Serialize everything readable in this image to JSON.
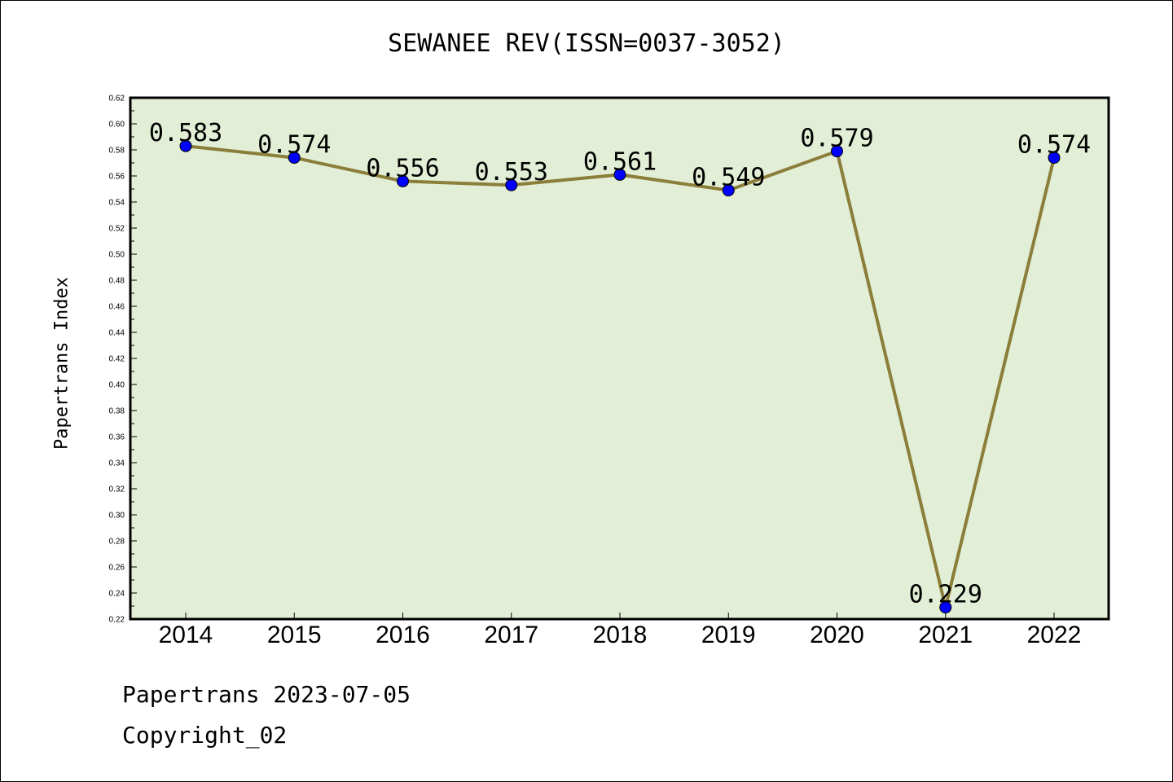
{
  "title": "SEWANEE REV(ISSN=0037-3052)",
  "footer": {
    "date_line": "Papertrans 2023-07-05",
    "copyright": "Copyright_02"
  },
  "chart_data": {
    "type": "line",
    "title": "SEWANEE REV(ISSN=0037-3052)",
    "xlabel": "",
    "ylabel": "Papertrans Index",
    "categories": [
      "2014",
      "2015",
      "2016",
      "2017",
      "2018",
      "2019",
      "2020",
      "2021",
      "2022"
    ],
    "series": [
      {
        "values": [
          0.583,
          0.574,
          0.556,
          0.553,
          0.561,
          0.549,
          0.579,
          0.229,
          0.574
        ]
      }
    ],
    "data_labels": [
      "0.583",
      "0.574",
      "0.556",
      "0.553",
      "0.561",
      "0.549",
      "0.579",
      "0.229",
      "0.574"
    ],
    "ylim": [
      0.22,
      0.62
    ],
    "yticks": [
      "0.22",
      "0.24",
      "0.26",
      "0.28",
      "0.30",
      "0.32",
      "0.34",
      "0.36",
      "0.38",
      "0.40",
      "0.42",
      "0.44",
      "0.46",
      "0.48",
      "0.50",
      "0.52",
      "0.54",
      "0.56",
      "0.58",
      "0.60",
      "0.62"
    ],
    "grid": false,
    "legend": "none",
    "colors": {
      "plot_background": "#e2efd6",
      "line": "#8b7d3a",
      "marker": "#0000ff"
    }
  }
}
